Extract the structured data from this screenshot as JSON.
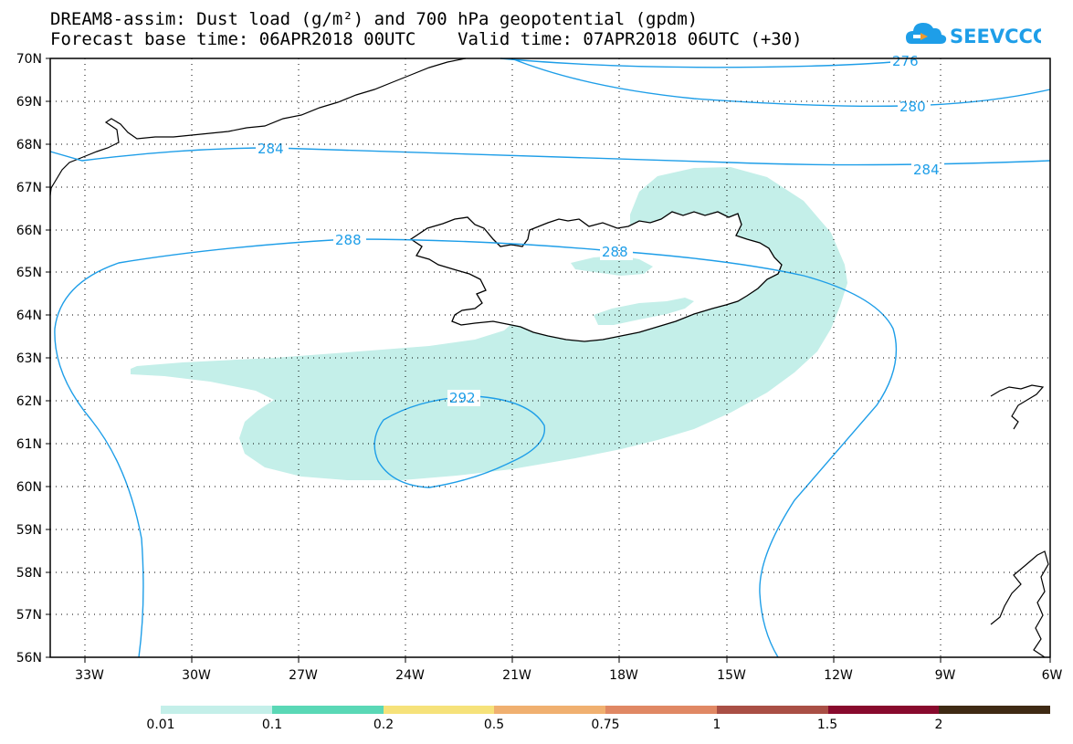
{
  "title": {
    "line1": "DREAM8-assim: Dust load (g/m²) and 700 hPa geopotential (gpdm)",
    "line2": "Forecast base time: 06APR2018 00UTC    Valid time: 07APR2018 06UTC (+30)"
  },
  "logo": {
    "text": "SEEVCCC",
    "icon": "cloud-icon",
    "color": "#1e9ee8",
    "accent": "#f29a2e"
  },
  "map": {
    "lat_labels": [
      "70N",
      "69N",
      "68N",
      "67N",
      "66N",
      "65N",
      "64N",
      "63N",
      "62N",
      "61N",
      "60N",
      "59N",
      "58N",
      "57N",
      "56N"
    ],
    "lon_labels": [
      "33W",
      "30W",
      "27W",
      "24W",
      "21W",
      "18W",
      "15W",
      "12W",
      "9W",
      "6W"
    ],
    "contour_color": "#1e9ee8",
    "contour_labels": [
      "276",
      "280",
      "284",
      "284",
      "288",
      "288",
      "292"
    ],
    "dust_fill_color": "#c4efe9"
  },
  "colorbar": {
    "colors": [
      "#c4efe9",
      "#5ad8b6",
      "#f6e27a",
      "#f0b070",
      "#e08864",
      "#a94f45",
      "#880a2d",
      "#3f2a14",
      "#8c6aa0"
    ],
    "labels": [
      "0.01",
      "0.1",
      "0.2",
      "0.5",
      "0.75",
      "1",
      "1.5",
      "2"
    ]
  }
}
